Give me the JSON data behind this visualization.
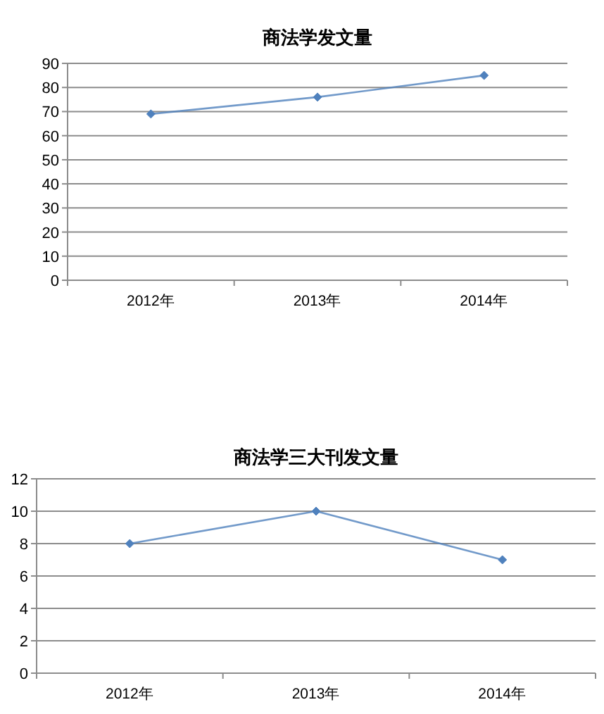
{
  "chart_data": [
    {
      "type": "line",
      "title": "商法学发文量",
      "categories": [
        "2012年",
        "2013年",
        "2014年"
      ],
      "series": [
        {
          "color": "#4f81bd",
          "values": [
            69,
            76,
            85
          ]
        }
      ],
      "ylim": [
        0,
        90
      ],
      "yticks": [
        0,
        10,
        20,
        30,
        40,
        50,
        60,
        70,
        80,
        90
      ],
      "grid": "y",
      "marker": "diamond"
    },
    {
      "type": "line",
      "title": "商法学三大刊发文量",
      "categories": [
        "2012年",
        "2013年",
        "2014年"
      ],
      "series": [
        {
          "color": "#4f81bd",
          "values": [
            8,
            10,
            7
          ]
        }
      ],
      "ylim": [
        0,
        12
      ],
      "yticks": [
        0,
        2,
        4,
        6,
        8,
        10,
        12
      ],
      "grid": "y",
      "marker": "diamond"
    }
  ]
}
